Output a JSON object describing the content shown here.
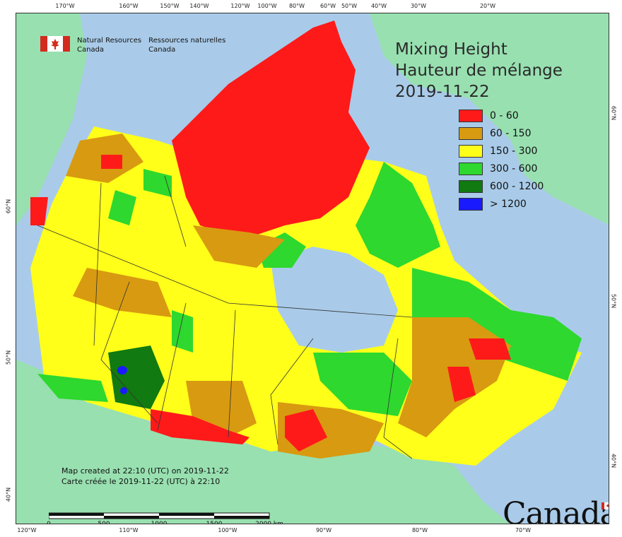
{
  "map": {
    "title_lines": [
      "Mixing Height",
      "Hauteur de mélange",
      "2019-11-22"
    ],
    "agency": {
      "en_line1": "Natural Resources",
      "en_line2": "Canada",
      "fr_line1": "Ressources naturelles",
      "fr_line2": "Canada"
    },
    "legend": [
      {
        "label": "0 - 60",
        "color": "#ff1a1a"
      },
      {
        "label": "60 - 150",
        "color": "#d89a10"
      },
      {
        "label": "150 - 300",
        "color": "#ffff1a"
      },
      {
        "label": "300 - 600",
        "color": "#2ed82e"
      },
      {
        "label": "600 - 1200",
        "color": "#117a11"
      },
      {
        "label": "> 1200",
        "color": "#1a1aff"
      }
    ],
    "credits": {
      "line1": "Map created at 22:10 (UTC) on 2019-11-22",
      "line2": "Carte créée le 2019-11-22 (UTC) à 22:10"
    },
    "scale": {
      "labels": [
        "0",
        "500",
        "1000",
        "1500",
        "2000  km"
      ]
    },
    "wordmark": "Canada",
    "top_ticks": [
      "170°W",
      "160°W",
      "150°W",
      "140°W",
      "120°W",
      "100°W",
      "80°W",
      "60°W",
      "50°W",
      "40°W",
      "30°W",
      "20°W"
    ],
    "bottom_ticks": [
      "120°W",
      "110°W",
      "100°W",
      "90°W",
      "80°W",
      "70°W"
    ],
    "left_ticks": [
      "60°N",
      "50°N",
      "40°N"
    ],
    "right_ticks": [
      "60°N",
      "50°N",
      "40°N"
    ],
    "colors": {
      "ocean": "#a9cbe9",
      "land_outside": "#98e0b0",
      "greenland": "#98e0b0"
    }
  }
}
